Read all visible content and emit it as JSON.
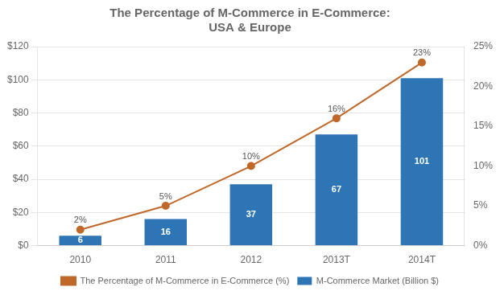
{
  "chart_data": {
    "type": "bar",
    "title": "The Percentage of M-Commerce in E-Commerce:\nUSA & Europe",
    "categories": [
      "2010",
      "2011",
      "2012",
      "2013T",
      "2014T"
    ],
    "series": [
      {
        "name": "M-Commerce Market (Billion $)",
        "type": "bar",
        "color": "#2E75B6",
        "values": [
          6,
          16,
          37,
          67,
          101
        ]
      },
      {
        "name": "The Percentage of M-Commerce in E-Commerce (%)",
        "type": "line",
        "axis": "y2",
        "color": "#C0672A",
        "marker": "circle",
        "values": [
          2,
          5,
          10,
          16,
          23
        ],
        "value_labels": [
          "2%",
          "5%",
          "10%",
          "16%",
          "23%"
        ]
      }
    ],
    "ylim": [
      0,
      120
    ],
    "yticks": [
      {
        "value": 0,
        "label": "$0"
      },
      {
        "value": 20,
        "label": "$20"
      },
      {
        "value": 40,
        "label": "$40"
      },
      {
        "value": 60,
        "label": "$60"
      },
      {
        "value": 80,
        "label": "$80"
      },
      {
        "value": 100,
        "label": "$100"
      },
      {
        "value": 120,
        "label": "$120"
      }
    ],
    "y2lim": [
      0,
      25
    ],
    "y2ticks": [
      {
        "value": 0,
        "label": "0%"
      },
      {
        "value": 5,
        "label": "5%"
      },
      {
        "value": 10,
        "label": "10%"
      },
      {
        "value": 15,
        "label": "15%"
      },
      {
        "value": 20,
        "label": "20%"
      },
      {
        "value": 25,
        "label": "25%"
      }
    ],
    "grid": true,
    "legend": "bottom",
    "data_labels": true
  }
}
